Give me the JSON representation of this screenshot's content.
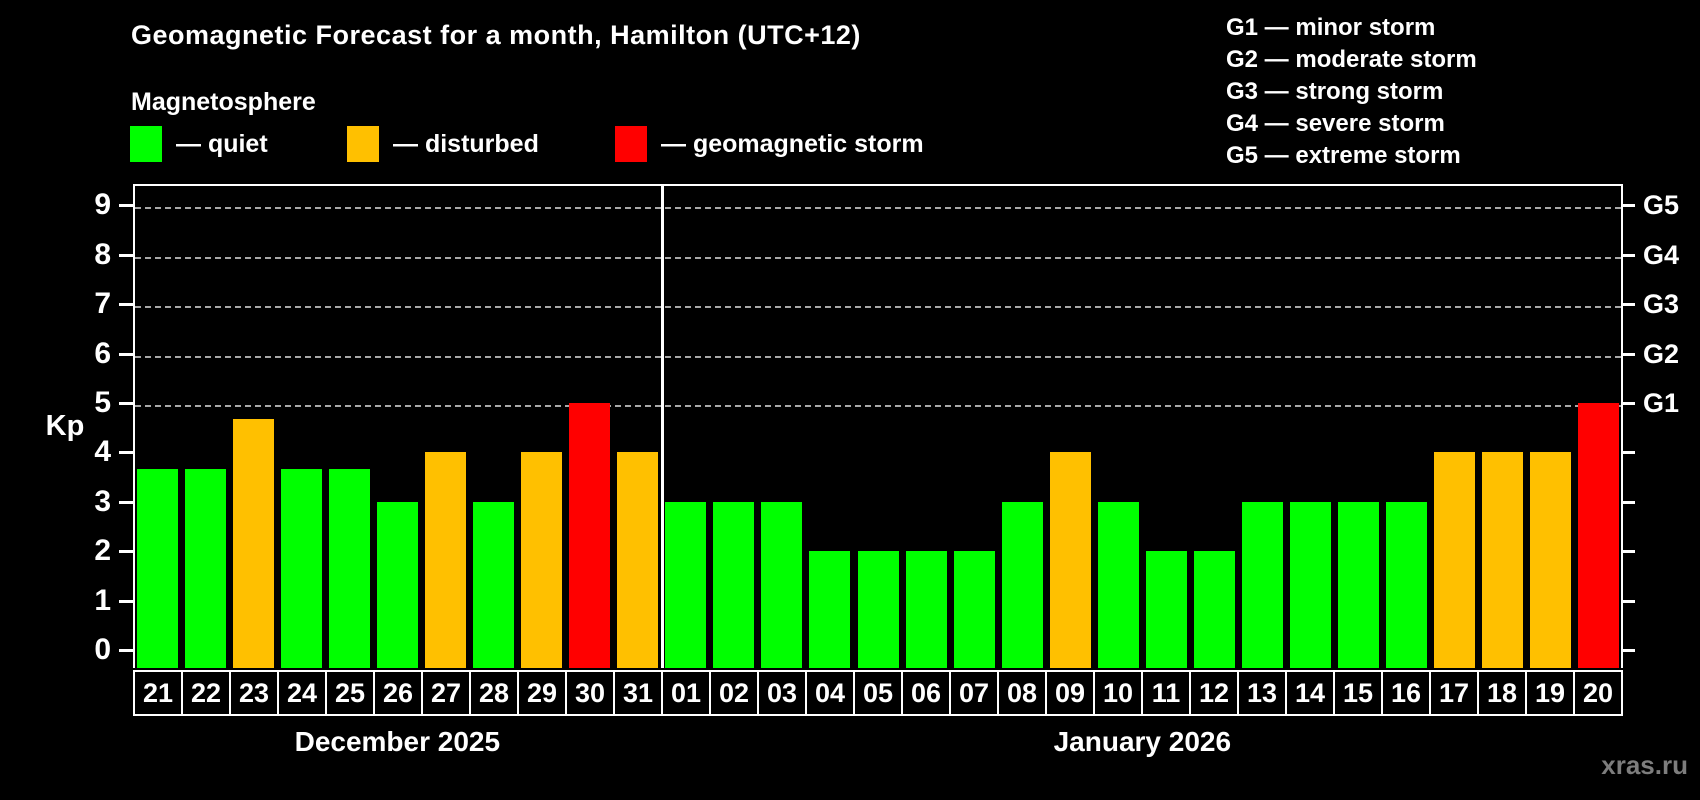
{
  "title": "Geomagnetic Forecast for a month, Hamilton (UTC+12)",
  "subtitle": "Magnetosphere",
  "legend": {
    "quiet_label": "— quiet",
    "disturbed_label": "— disturbed",
    "storm_label": "— geomagnetic storm"
  },
  "g_legend": [
    "G1 — minor storm",
    "G2 — moderate storm",
    "G3 — strong storm",
    "G4 — severe storm",
    "G5 — extreme storm"
  ],
  "watermark": "xras.ru",
  "colors": {
    "quiet": "#00ff00",
    "disturbed": "#ffc000",
    "storm": "#ff0000",
    "grid": "#a8a8a8",
    "watermark": "#7d7d7d"
  },
  "chart_data": {
    "type": "bar",
    "ylabel": "Kp",
    "ylim": [
      -0.37,
      9.42
    ],
    "yticks": [
      0,
      1,
      2,
      3,
      4,
      5,
      6,
      7,
      8,
      9
    ],
    "gridlines_at": [
      5,
      6,
      7,
      8,
      9
    ],
    "grid": true,
    "right_axis_labels": [
      {
        "label": "G1",
        "value": 5
      },
      {
        "label": "G2",
        "value": 6
      },
      {
        "label": "G3",
        "value": 7
      },
      {
        "label": "G4",
        "value": 8
      },
      {
        "label": "G5",
        "value": 9
      }
    ],
    "months": [
      {
        "label": "December 2025",
        "span": 11
      },
      {
        "label": "January 2026",
        "span": 20
      }
    ],
    "days": [
      {
        "day": "21",
        "kp": 3.67,
        "status": "quiet"
      },
      {
        "day": "22",
        "kp": 3.67,
        "status": "quiet"
      },
      {
        "day": "23",
        "kp": 4.67,
        "status": "disturbed"
      },
      {
        "day": "24",
        "kp": 3.67,
        "status": "quiet"
      },
      {
        "day": "25",
        "kp": 3.67,
        "status": "quiet"
      },
      {
        "day": "26",
        "kp": 3,
        "status": "quiet"
      },
      {
        "day": "27",
        "kp": 4,
        "status": "disturbed"
      },
      {
        "day": "28",
        "kp": 3,
        "status": "quiet"
      },
      {
        "day": "29",
        "kp": 4,
        "status": "disturbed"
      },
      {
        "day": "30",
        "kp": 5,
        "status": "storm"
      },
      {
        "day": "31",
        "kp": 4,
        "status": "disturbed"
      },
      {
        "day": "01",
        "kp": 3,
        "status": "quiet"
      },
      {
        "day": "02",
        "kp": 3,
        "status": "quiet"
      },
      {
        "day": "03",
        "kp": 3,
        "status": "quiet"
      },
      {
        "day": "04",
        "kp": 2,
        "status": "quiet"
      },
      {
        "day": "05",
        "kp": 2,
        "status": "quiet"
      },
      {
        "day": "06",
        "kp": 2,
        "status": "quiet"
      },
      {
        "day": "07",
        "kp": 2,
        "status": "quiet"
      },
      {
        "day": "08",
        "kp": 3,
        "status": "quiet"
      },
      {
        "day": "09",
        "kp": 4,
        "status": "disturbed"
      },
      {
        "day": "10",
        "kp": 3,
        "status": "quiet"
      },
      {
        "day": "11",
        "kp": 2,
        "status": "quiet"
      },
      {
        "day": "12",
        "kp": 2,
        "status": "quiet"
      },
      {
        "day": "13",
        "kp": 3,
        "status": "quiet"
      },
      {
        "day": "14",
        "kp": 3,
        "status": "quiet"
      },
      {
        "day": "15",
        "kp": 3,
        "status": "quiet"
      },
      {
        "day": "16",
        "kp": 3,
        "status": "quiet"
      },
      {
        "day": "17",
        "kp": 4,
        "status": "disturbed"
      },
      {
        "day": "18",
        "kp": 4,
        "status": "disturbed"
      },
      {
        "day": "19",
        "kp": 4,
        "status": "disturbed"
      },
      {
        "day": "20",
        "kp": 5,
        "status": "storm"
      }
    ]
  }
}
